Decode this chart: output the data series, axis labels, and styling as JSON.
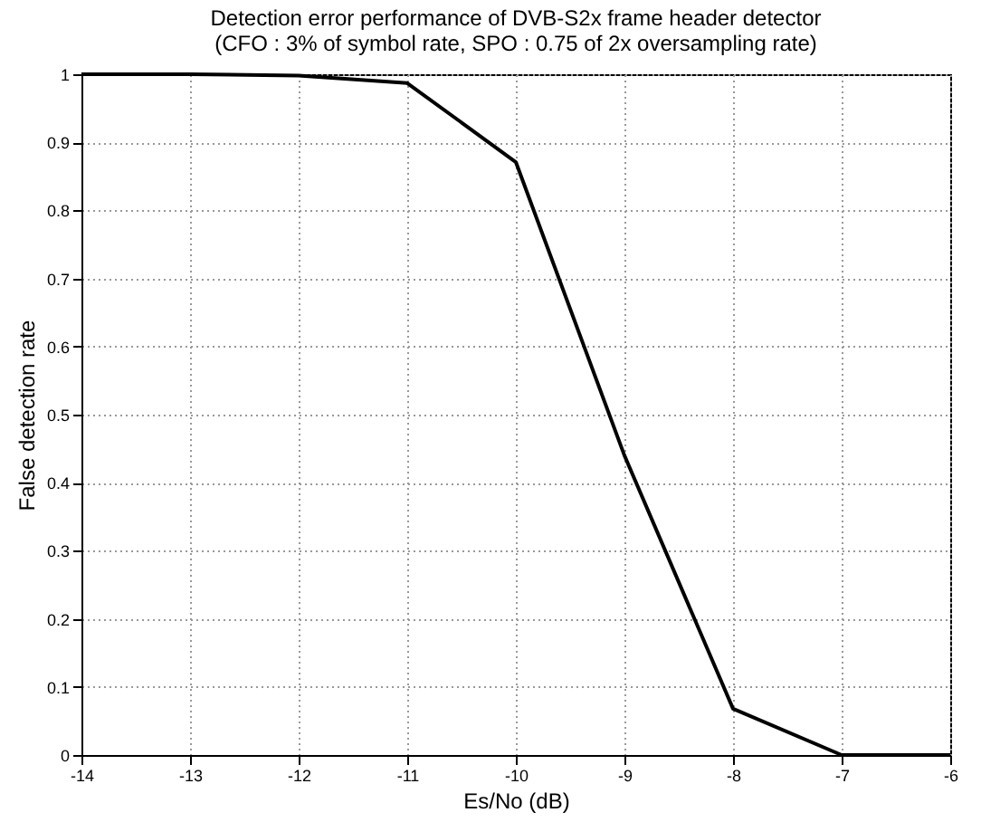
{
  "chart_data": {
    "type": "line",
    "title": "Detection error performance of DVB-S2x frame header detector",
    "subtitle": "(CFO : 3% of symbol rate, SPO : 0.75 of 2x oversampling rate)",
    "xlabel": "Es/No (dB)",
    "ylabel": "False detection rate",
    "x": [
      -14,
      -13,
      -12,
      -11,
      -10,
      -9,
      -8,
      -7,
      -6
    ],
    "series": [
      {
        "color": "#000000",
        "values": [
          1,
          1,
          0.998,
          0.987,
          0.871,
          0.44,
          0.068,
          0,
          0
        ]
      }
    ],
    "xlim": [
      -14,
      -6
    ],
    "xticks": [
      -14,
      -13,
      -12,
      -11,
      -10,
      -9,
      -8,
      -7,
      -6
    ],
    "ylim": [
      0,
      1
    ],
    "yticks": [
      0,
      0.1,
      0.2,
      0.3,
      0.4,
      0.5,
      0.6,
      0.7,
      0.8,
      0.9,
      1
    ],
    "grid": true,
    "marker": "none",
    "line_style": "solid"
  }
}
